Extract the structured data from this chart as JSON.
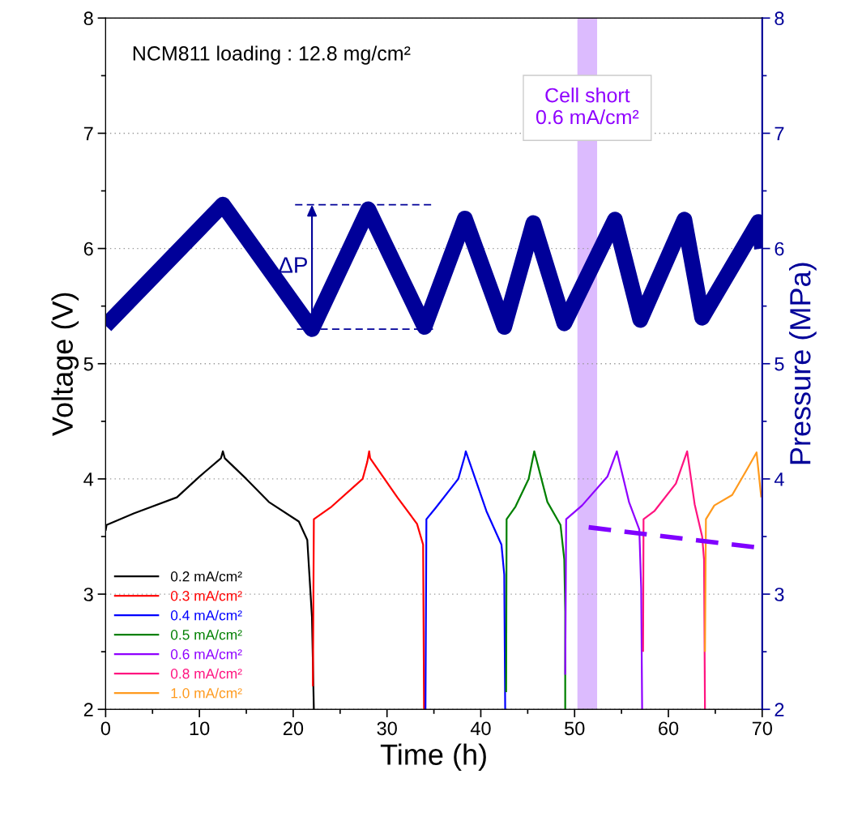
{
  "chart_data": {
    "type": "line",
    "xlabel": "Time (h)",
    "ylabel": "Voltage (V)",
    "y2label": "Pressure (MPa)",
    "xlim": [
      0,
      70
    ],
    "xticks": [
      0,
      {
        "value": 5,
        "label": null
      },
      10,
      {
        "value": 15,
        "label": null
      },
      20,
      {
        "value": 25,
        "label": null
      },
      30,
      {
        "value": 35,
        "label": null
      },
      40,
      {
        "value": 45,
        "label": null
      },
      50,
      {
        "value": 55,
        "label": null
      },
      60,
      {
        "value": 65,
        "label": null
      },
      70
    ],
    "ylim": [
      2,
      8
    ],
    "yticks": [
      2,
      {
        "value": 2.5,
        "label": null
      },
      3,
      {
        "value": 3.5,
        "label": null
      },
      4,
      {
        "value": 4.5,
        "label": null
      },
      5,
      {
        "value": 5.5,
        "label": null
      },
      6,
      {
        "value": 6.5,
        "label": null
      },
      7,
      {
        "value": 7.5,
        "label": null
      },
      8
    ],
    "y2lim": [
      2,
      8
    ],
    "y2ticks": [
      2,
      {
        "value": 2.5,
        "label": null
      },
      3,
      {
        "value": 3.5,
        "label": null
      },
      4,
      {
        "value": 4.5,
        "label": null
      },
      5,
      {
        "value": 5.5,
        "label": null
      },
      6,
      {
        "value": 6.5,
        "label": null
      },
      7,
      {
        "value": 7.5,
        "label": null
      },
      8
    ],
    "grid": "y",
    "legend": "bottom left",
    "line_style": "solid",
    "marker": "none",
    "series": [
      {
        "name": "0.2 mA/cm²",
        "color": "#000000",
        "x": [
          0,
          0.1,
          3,
          7.6,
          10,
          12.3,
          12.5,
          12.7,
          15,
          17.4,
          20.6,
          21.5,
          22.0,
          22.2
        ],
        "values": [
          3.55,
          3.6,
          3.7,
          3.84,
          4.02,
          4.18,
          4.24,
          4.18,
          4.0,
          3.8,
          3.63,
          3.47,
          2.8,
          2.0
        ]
      },
      {
        "name": "0.3 mA/cm²",
        "color": "#ff0000",
        "x": [
          22.1,
          22.2,
          24.1,
          27.4,
          27.9,
          28.1,
          28.2,
          31.1,
          33.2,
          33.85,
          33.9,
          33.95
        ],
        "values": [
          2.2,
          3.65,
          3.76,
          4.0,
          4.15,
          4.24,
          4.18,
          3.84,
          3.61,
          3.43,
          2.7,
          2.0
        ]
      },
      {
        "name": "0.4 mA/cm²",
        "color": "#0000ff",
        "x": [
          34.1,
          34.2,
          35.2,
          37.6,
          38.3,
          38.4,
          40.6,
          42.2,
          42.5,
          42.6
        ],
        "values": [
          2.0,
          3.65,
          3.75,
          4.0,
          4.2,
          4.24,
          3.72,
          3.43,
          3.17,
          2.0
        ]
      },
      {
        "name": "0.5 mA/cm²",
        "color": "#008000",
        "x": [
          42.7,
          42.75,
          43.7,
          45.1,
          45.7,
          47.1,
          48.5,
          48.9,
          49.0,
          49.0
        ],
        "values": [
          2.15,
          3.65,
          3.76,
          4.0,
          4.24,
          3.8,
          3.6,
          3.3,
          2.85,
          2.0
        ]
      },
      {
        "name": "0.6 mA/cm²",
        "color": "#8f00ff",
        "x": [
          49.0,
          49.1,
          50.8,
          53.5,
          54.5,
          55.8,
          56.9,
          57.1,
          57.2
        ],
        "values": [
          2.3,
          3.65,
          3.77,
          4.02,
          4.24,
          3.8,
          3.56,
          3.05,
          2.0
        ]
      },
      {
        "name": "0.8 mA/cm²",
        "color": "#ff1480",
        "x": [
          57.3,
          57.35,
          58.5,
          60.8,
          62.0,
          62.8,
          63.6,
          63.8,
          63.9
        ],
        "values": [
          2.5,
          3.65,
          3.72,
          3.96,
          4.24,
          3.78,
          3.5,
          3.3,
          2.0
        ]
      },
      {
        "name": "1.0 mA/cm²",
        "color": "#ff9a1e",
        "x": [
          63.9,
          64.0,
          64.9,
          66.8,
          68.5,
          69.4,
          69.9
        ],
        "values": [
          2.5,
          3.65,
          3.77,
          3.86,
          4.1,
          4.23,
          3.84
        ]
      },
      {
        "color": "#8000ff",
        "line_style": "dashed",
        "x": [
          51.5,
          70
        ],
        "values": [
          3.58,
          3.4
        ]
      },
      {
        "color": "#000099",
        "axis": "y2",
        "x": [
          0,
          12.5,
          22,
          28.0,
          34.0,
          38.3,
          42.5,
          45.6,
          48.9,
          54.3,
          57.0,
          61.7,
          63.6,
          69.6,
          70
        ],
        "values": [
          5.33,
          6.38,
          5.3,
          6.34,
          5.32,
          6.26,
          5.32,
          6.22,
          5.35,
          6.25,
          5.38,
          6.25,
          5.4,
          6.23,
          6.0
        ]
      },
      {
        "color": "#000099",
        "axis": "y2",
        "line_style": "dashed",
        "x": [
          20.4,
          35.2
        ],
        "values": [
          5.3,
          5.3
        ]
      },
      {
        "color": "#000099",
        "axis": "y2",
        "line_style": "dashed",
        "x": [
          20.2,
          35.0
        ],
        "values": [
          6.38,
          6.38
        ]
      }
    ],
    "bands": [
      {
        "axis": "x",
        "from": 50.3,
        "to": 52.4,
        "label": "Cell short\n0.6 mA/cm²",
        "color": "#d8b4fe"
      }
    ],
    "annotations": [
      "NCM811 loading : 12.8 mg/cm²",
      "ΔP"
    ]
  }
}
